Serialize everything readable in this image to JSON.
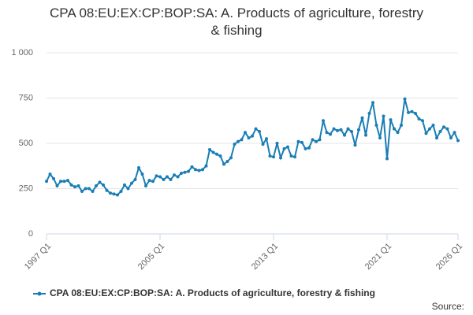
{
  "chart_data": {
    "type": "line",
    "title": "CPA 08:EU:EX:CP:BOP:SA: A. Products of agriculture, forestry & fishing",
    "source": "Source:",
    "categories": [
      "1997 Q1",
      null,
      null,
      null,
      null,
      null,
      null,
      null,
      null,
      null,
      null,
      null,
      null,
      null,
      null,
      null,
      null,
      null,
      null,
      null,
      null,
      null,
      null,
      null,
      null,
      null,
      null,
      null,
      null,
      null,
      null,
      null,
      "2005 Q1",
      null,
      null,
      null,
      null,
      null,
      null,
      null,
      null,
      null,
      null,
      null,
      null,
      null,
      null,
      null,
      null,
      null,
      null,
      null,
      null,
      null,
      null,
      null,
      null,
      null,
      null,
      null,
      null,
      null,
      null,
      null,
      "2013 Q1",
      null,
      null,
      null,
      null,
      null,
      null,
      null,
      null,
      null,
      null,
      null,
      null,
      null,
      null,
      null,
      null,
      null,
      null,
      null,
      null,
      null,
      null,
      null,
      null,
      null,
      null,
      null,
      null,
      null,
      null,
      null,
      "2021 Q1",
      null,
      null,
      null,
      null,
      null,
      null,
      null,
      null,
      null,
      null,
      null,
      null,
      null,
      null,
      null,
      null,
      null,
      null,
      null,
      "2026 Q1"
    ],
    "series": [
      {
        "name": "CPA 08:EU:EX:CP:BOP:SA: A. Products of agriculture, forestry & fishing",
        "color": "#1a7db5",
        "values": [
          290,
          330,
          305,
          265,
          290,
          290,
          295,
          270,
          260,
          265,
          235,
          250,
          250,
          235,
          265,
          285,
          270,
          240,
          225,
          220,
          215,
          235,
          270,
          250,
          280,
          300,
          365,
          330,
          265,
          295,
          290,
          320,
          315,
          300,
          315,
          300,
          325,
          315,
          335,
          340,
          345,
          370,
          355,
          350,
          355,
          375,
          465,
          450,
          440,
          430,
          385,
          400,
          420,
          495,
          510,
          520,
          560,
          530,
          540,
          580,
          565,
          495,
          525,
          430,
          425,
          500,
          420,
          470,
          480,
          430,
          425,
          510,
          505,
          470,
          475,
          520,
          510,
          520,
          625,
          560,
          550,
          580,
          570,
          575,
          545,
          580,
          565,
          490,
          575,
          640,
          545,
          665,
          725,
          600,
          530,
          650,
          415,
          630,
          580,
          560,
          600,
          745,
          670,
          675,
          665,
          635,
          625,
          555,
          580,
          600,
          530,
          565,
          590,
          580,
          530,
          560,
          515
        ]
      }
    ],
    "ylim": [
      0,
      1000
    ],
    "yticks": [
      0,
      250,
      500,
      750,
      {
        "value": 1000,
        "label": "1 000"
      }
    ],
    "grid": true
  }
}
